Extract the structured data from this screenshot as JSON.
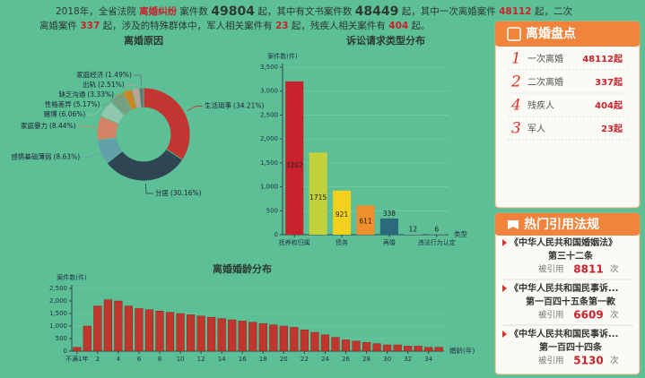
{
  "summary": {
    "parts": [
      "2018年，全省法院",
      "离婚纠纷",
      "案件数",
      "49804",
      "起，其中有文书案件数",
      "48449",
      "起，其中一次离婚案件",
      "48112",
      "起，二次",
      "离婚案件",
      "337",
      "起，涉及的特殊群体中，军人相关案件有",
      "23",
      "起，残疾人相关案件有",
      "404",
      "起。"
    ]
  },
  "chart_data": [
    {
      "type": "pie",
      "title": "离婚原因",
      "categories": [
        "生活琐事",
        "分居",
        "感情基础薄弱",
        "家庭暴力",
        "赌博",
        "性格差异",
        "缺乏沟通",
        "出轨",
        "家庭经济"
      ],
      "values": [
        34.21,
        30.16,
        8.63,
        8.44,
        6.06,
        5.17,
        3.33,
        2.51,
        1.49
      ],
      "value_labels": [
        "(34.21%)",
        "(30.16%)",
        "(8.63%)",
        "(8.44%)",
        "(6.06%)",
        "(5.17%)",
        "(3.33%)",
        "(2.51%)",
        "(1.49%)"
      ],
      "colors": [
        "#c23531",
        "#2f4554",
        "#61a0a8",
        "#d48265",
        "#91c7ae",
        "#749f83",
        "#ca8622",
        "#bda29a",
        "#6e7074"
      ]
    },
    {
      "type": "bar",
      "title": "诉讼请求类型分布",
      "y_label": "案件数(件)",
      "x_label": "类型",
      "categories": [
        "抚养权归属",
        null,
        "债务",
        null,
        "再婚",
        null,
        "违法行为认定"
      ],
      "values": [
        3202,
        1715,
        921,
        611,
        338,
        12,
        6
      ],
      "colors": [
        "#c8232c",
        "#c3d23c",
        "#f3d11d",
        "#ef8f2c",
        "#2b6a7c",
        "#8aa8a0",
        "#8aa8a0"
      ],
      "ylim": [
        0,
        3500
      ],
      "yticks": [
        0,
        500,
        {
          "value": 1000,
          "label": "1,000"
        },
        {
          "value": 1500,
          "label": "1,500"
        },
        {
          "value": 2000,
          "label": "2,000"
        },
        {
          "value": 2500,
          "label": "2,500"
        },
        {
          "value": 3000,
          "label": "3,000"
        },
        {
          "value": 3500,
          "label": "3,500"
        }
      ],
      "grid": true
    },
    {
      "type": "bar",
      "title": "离婚婚龄分布",
      "y_label": "案件数(件)",
      "x_label": "婚龄(年)",
      "categories": [
        "不满1年",
        null,
        "2",
        null,
        "4",
        null,
        "6",
        null,
        "8",
        null,
        "10",
        null,
        "12",
        null,
        "14",
        null,
        "16",
        null,
        "18",
        null,
        "20",
        null,
        "22",
        null,
        "24",
        null,
        "26",
        null,
        "28",
        null,
        "30",
        null,
        "32",
        null,
        "34",
        null
      ],
      "values": [
        150,
        1000,
        1800,
        2050,
        2000,
        1800,
        1700,
        1650,
        1600,
        1550,
        1500,
        1450,
        1400,
        1350,
        1300,
        1250,
        1200,
        1150,
        1100,
        1050,
        1000,
        950,
        850,
        750,
        650,
        550,
        450,
        400,
        350,
        300,
        250,
        250,
        200,
        200,
        150,
        150
      ],
      "color": "#c0352c",
      "ylim": [
        0,
        2500
      ],
      "yticks": [
        0,
        500,
        {
          "value": 1000,
          "label": "1,000"
        },
        {
          "value": 1500,
          "label": "1,500"
        },
        {
          "value": 2000,
          "label": "2,000"
        },
        {
          "value": 2500,
          "label": "2,500"
        }
      ],
      "grid": true
    }
  ],
  "sidebar": {
    "stats": {
      "title": "离婚盘点",
      "rows": [
        {
          "rank": "1",
          "label": "一次离婚",
          "count": "48112起"
        },
        {
          "rank": "2",
          "label": "二次离婚",
          "count": "337起"
        },
        {
          "rank": "4",
          "label": "残疾人",
          "count": "404起"
        },
        {
          "rank": "3",
          "label": "军人",
          "count": "23起"
        }
      ]
    },
    "laws": {
      "title": "热门引用法规",
      "items": [
        {
          "name": "《中华人民共和国婚姻法》",
          "article": "第三十二条",
          "cited": "被引用",
          "count": 8811,
          "unit": "次"
        },
        {
          "name": "《中华人民共和国民事诉...",
          "article": "第一百四十五条第一款",
          "cited": "被引用",
          "count": 6609,
          "unit": "次"
        },
        {
          "name": "《中华人民共和国民事诉...",
          "article": "第一百四十四条",
          "cited": "被引用",
          "count": 5130,
          "unit": "次"
        }
      ]
    }
  }
}
